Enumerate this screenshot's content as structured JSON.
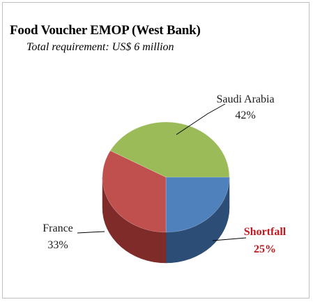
{
  "chart_data": {
    "type": "pie",
    "title": "Food Voucher EMOP (West Bank)",
    "subtitle": "Total requirement: US$ 6 million",
    "slices": [
      {
        "label": "Saudi Arabia",
        "value": 42,
        "value_label": "42%",
        "color": "#9bbb59",
        "side_color": "#6f8a3b",
        "label_color": "#1a1a1a",
        "label_bold": false
      },
      {
        "label": "Shortfall",
        "value": 25,
        "value_label": "25%",
        "color": "#4f81bd",
        "side_color": "#2c4d75",
        "label_color": "#c0181f",
        "label_bold": true
      },
      {
        "label": "France",
        "value": 33,
        "value_label": "33%",
        "color": "#c0504d",
        "side_color": "#7f2b2a",
        "label_color": "#1a1a1a",
        "label_bold": false
      }
    ],
    "style": "3d",
    "legend": "none"
  }
}
